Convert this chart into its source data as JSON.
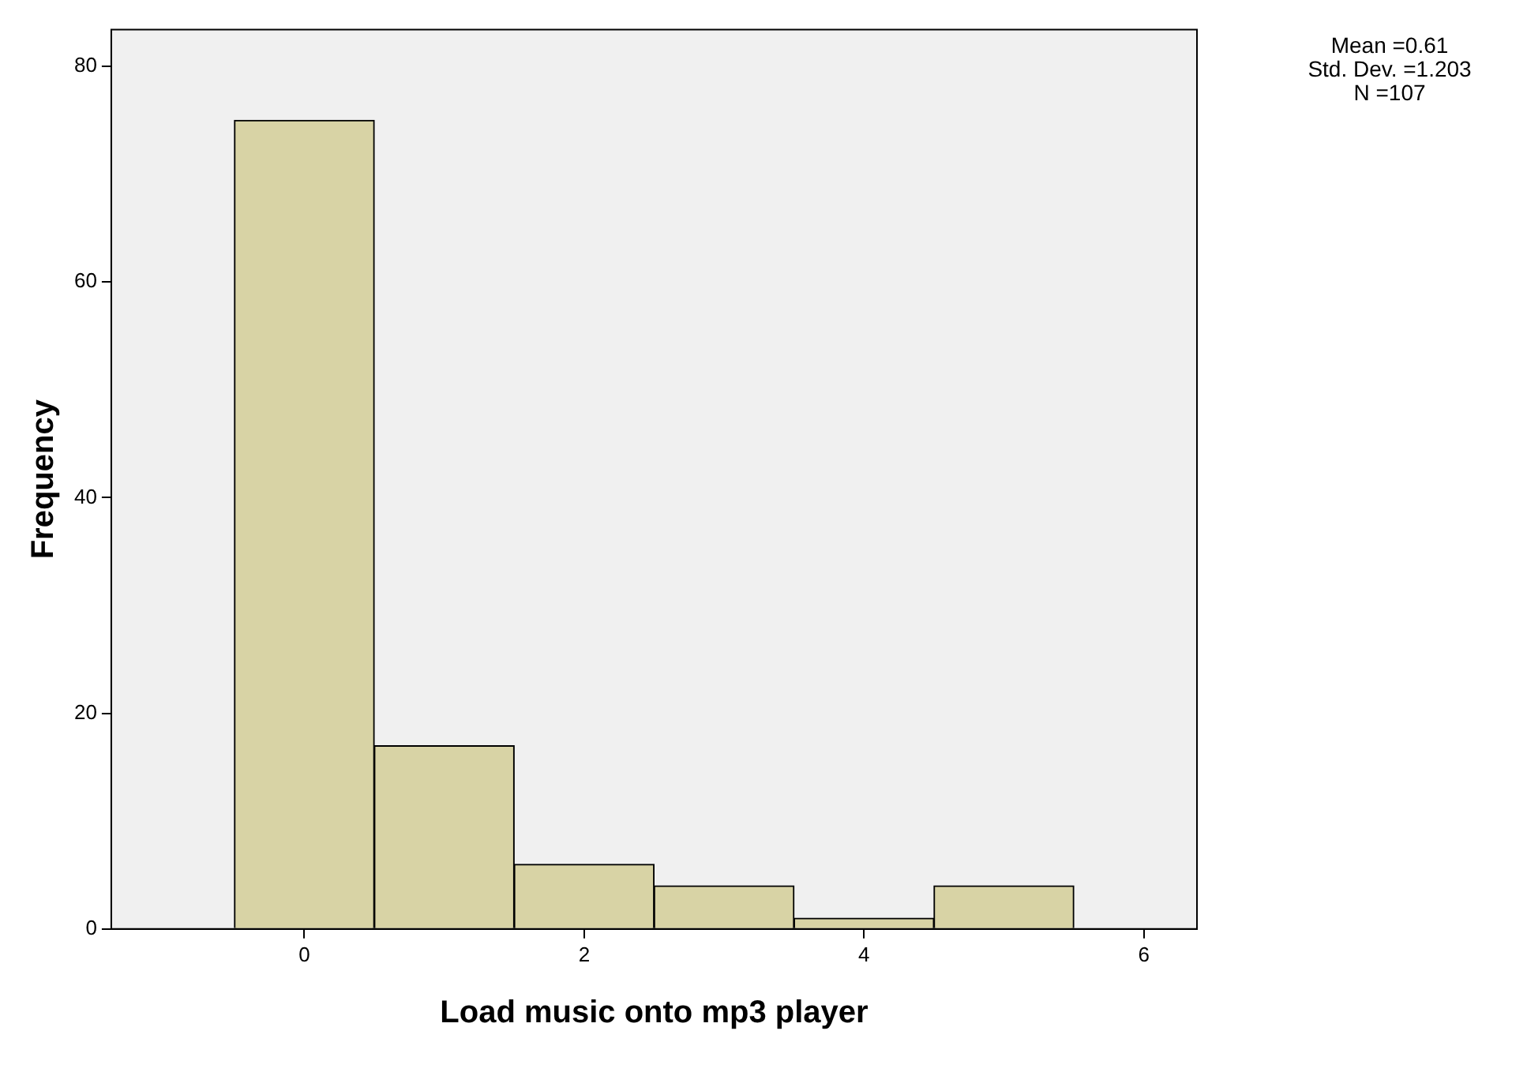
{
  "chart_data": {
    "type": "histogram",
    "xlabel": "Load music onto mp3 player",
    "ylabel": "Frequency",
    "bins": [
      -0.5,
      0.5,
      1.5,
      2.5,
      3.5,
      4.5,
      5.5
    ],
    "values": [
      75,
      17,
      6,
      4,
      1,
      4
    ],
    "color": "#d8d3a5",
    "xlim": [
      -1.38,
      6.38
    ],
    "xticks": [
      0,
      2,
      4,
      6
    ],
    "ylim": [
      0,
      83.4
    ],
    "yticks": [
      0,
      20,
      40,
      60,
      80
    ],
    "grid": false,
    "annotations": [
      "Mean =0.61",
      "Std. Dev. =1.203",
      "N =107"
    ]
  }
}
